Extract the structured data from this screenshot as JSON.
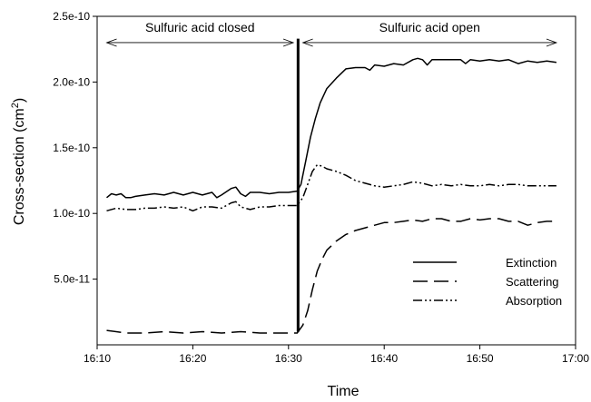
{
  "chart_data": {
    "type": "line",
    "xlabel": "Time",
    "ylabel_main": "Cross-section (cm",
    "ylabel_sup": "2",
    "ylabel_close": ")",
    "x_unit": "minutes",
    "xlim": [
      "16:10",
      "17:00"
    ],
    "ylim": [
      0,
      2.5e-10
    ],
    "x_ticks": [
      "16:10",
      "16:20",
      "16:30",
      "16:40",
      "16:50",
      "17:00"
    ],
    "y_ticks": [
      {
        "value": 5e-11,
        "label": "5.0e-11"
      },
      {
        "value": 1e-10,
        "label": "1.0e-10"
      },
      {
        "value": 1.5e-10,
        "label": "1.5e-10"
      },
      {
        "value": 2e-10,
        "label": "2.0e-10"
      },
      {
        "value": 2.5e-10,
        "label": "2.5e-10"
      }
    ],
    "grid": false,
    "legend_position": "bottom-right",
    "annotations": [
      {
        "text": "Sulfuric acid closed",
        "x_start": "16:11",
        "x_end": "16:30.5",
        "y": 2.3e-10
      },
      {
        "text": "Sulfuric acid open",
        "x_start": "16:31.5",
        "x_end": "16:58",
        "y": 2.3e-10
      }
    ],
    "event_line": {
      "x": "16:31",
      "y_min": 1e-11,
      "y_max": 2.33e-10
    },
    "series": [
      {
        "name": "Extinction",
        "dash": "solid",
        "points": [
          [
            "16:11",
            1.12e-10
          ],
          [
            "16:11.5",
            1.15e-10
          ],
          [
            "16:12",
            1.14e-10
          ],
          [
            "16:12.5",
            1.15e-10
          ],
          [
            "16:13",
            1.12e-10
          ],
          [
            "16:13.5",
            1.12e-10
          ],
          [
            "16:14",
            1.13e-10
          ],
          [
            "16:15",
            1.14e-10
          ],
          [
            "16:16",
            1.15e-10
          ],
          [
            "16:17",
            1.14e-10
          ],
          [
            "16:18",
            1.16e-10
          ],
          [
            "16:19",
            1.14e-10
          ],
          [
            "16:20",
            1.16e-10
          ],
          [
            "16:21",
            1.14e-10
          ],
          [
            "16:22",
            1.16e-10
          ],
          [
            "16:22.5",
            1.12e-10
          ],
          [
            "16:23",
            1.14e-10
          ],
          [
            "16:24",
            1.19e-10
          ],
          [
            "16:24.5",
            1.2e-10
          ],
          [
            "16:25",
            1.15e-10
          ],
          [
            "16:25.5",
            1.13e-10
          ],
          [
            "16:26",
            1.16e-10
          ],
          [
            "16:27",
            1.16e-10
          ],
          [
            "16:28",
            1.15e-10
          ],
          [
            "16:29",
            1.16e-10
          ],
          [
            "16:30",
            1.16e-10
          ],
          [
            "16:30.9",
            1.17e-10
          ],
          [
            "16:31.3",
            1.22e-10
          ],
          [
            "16:31.8",
            1.4e-10
          ],
          [
            "16:32.3",
            1.58e-10
          ],
          [
            "16:32.8",
            1.72e-10
          ],
          [
            "16:33.3",
            1.84e-10
          ],
          [
            "16:34",
            1.95e-10
          ],
          [
            "16:35",
            2.03e-10
          ],
          [
            "16:36",
            2.1e-10
          ],
          [
            "16:37",
            2.11e-10
          ],
          [
            "16:38",
            2.11e-10
          ],
          [
            "16:38.5",
            2.09e-10
          ],
          [
            "16:39",
            2.13e-10
          ],
          [
            "16:40",
            2.12e-10
          ],
          [
            "16:41",
            2.14e-10
          ],
          [
            "16:42",
            2.13e-10
          ],
          [
            "16:43",
            2.17e-10
          ],
          [
            "16:43.5",
            2.18e-10
          ],
          [
            "16:44",
            2.17e-10
          ],
          [
            "16:44.5",
            2.13e-10
          ],
          [
            "16:45",
            2.17e-10
          ],
          [
            "16:46",
            2.17e-10
          ],
          [
            "16:47",
            2.17e-10
          ],
          [
            "16:48",
            2.17e-10
          ],
          [
            "16:48.5",
            2.14e-10
          ],
          [
            "16:49",
            2.17e-10
          ],
          [
            "16:50",
            2.16e-10
          ],
          [
            "16:51",
            2.17e-10
          ],
          [
            "16:52",
            2.16e-10
          ],
          [
            "16:53",
            2.17e-10
          ],
          [
            "16:54",
            2.14e-10
          ],
          [
            "16:55",
            2.16e-10
          ],
          [
            "16:56",
            2.15e-10
          ],
          [
            "16:57",
            2.16e-10
          ],
          [
            "16:58",
            2.15e-10
          ]
        ]
      },
      {
        "name": "Scattering",
        "dash": "long-dash",
        "points": [
          [
            "16:11",
            1.1e-11
          ],
          [
            "16:13",
            9e-12
          ],
          [
            "16:15",
            9e-12
          ],
          [
            "16:17",
            1e-11
          ],
          [
            "16:19",
            9e-12
          ],
          [
            "16:21",
            1e-11
          ],
          [
            "16:23",
            9e-12
          ],
          [
            "16:25",
            1e-11
          ],
          [
            "16:27",
            9e-12
          ],
          [
            "16:29",
            9e-12
          ],
          [
            "16:30.9",
            9e-12
          ],
          [
            "16:31.5",
            1.5e-11
          ],
          [
            "16:32",
            2.6e-11
          ],
          [
            "16:32.5",
            4.2e-11
          ],
          [
            "16:33",
            5.6e-11
          ],
          [
            "16:33.5",
            6.5e-11
          ],
          [
            "16:34",
            7.2e-11
          ],
          [
            "16:35",
            7.9e-11
          ],
          [
            "16:36",
            8.4e-11
          ],
          [
            "16:37",
            8.7e-11
          ],
          [
            "16:38",
            8.9e-11
          ],
          [
            "16:39",
            9.1e-11
          ],
          [
            "16:40",
            9.3e-11
          ],
          [
            "16:41",
            9.3e-11
          ],
          [
            "16:42",
            9.4e-11
          ],
          [
            "16:43",
            9.5e-11
          ],
          [
            "16:44",
            9.4e-11
          ],
          [
            "16:45",
            9.6e-11
          ],
          [
            "16:46",
            9.6e-11
          ],
          [
            "16:47",
            9.4e-11
          ],
          [
            "16:48",
            9.4e-11
          ],
          [
            "16:49",
            9.6e-11
          ],
          [
            "16:50",
            9.5e-11
          ],
          [
            "16:51",
            9.6e-11
          ],
          [
            "16:52",
            9.6e-11
          ],
          [
            "16:53",
            9.4e-11
          ],
          [
            "16:54",
            9.4e-11
          ],
          [
            "16:55",
            9.1e-11
          ],
          [
            "16:56",
            9.3e-11
          ],
          [
            "16:57",
            9.4e-11
          ],
          [
            "16:58",
            9.4e-11
          ]
        ]
      },
      {
        "name": "Absorption",
        "dash": "dash-dot-dot",
        "points": [
          [
            "16:11",
            1.02e-10
          ],
          [
            "16:12",
            1.04e-10
          ],
          [
            "16:13",
            1.03e-10
          ],
          [
            "16:14",
            1.03e-10
          ],
          [
            "16:15",
            1.04e-10
          ],
          [
            "16:16",
            1.04e-10
          ],
          [
            "16:17",
            1.05e-10
          ],
          [
            "16:18",
            1.04e-10
          ],
          [
            "16:19",
            1.05e-10
          ],
          [
            "16:20",
            1.02e-10
          ],
          [
            "16:21",
            1.05e-10
          ],
          [
            "16:22",
            1.05e-10
          ],
          [
            "16:23",
            1.04e-10
          ],
          [
            "16:24",
            1.08e-10
          ],
          [
            "16:24.5",
            1.09e-10
          ],
          [
            "16:25",
            1.05e-10
          ],
          [
            "16:26",
            1.03e-10
          ],
          [
            "16:27",
            1.05e-10
          ],
          [
            "16:28",
            1.05e-10
          ],
          [
            "16:29",
            1.06e-10
          ],
          [
            "16:30",
            1.06e-10
          ],
          [
            "16:30.9",
            1.06e-10
          ],
          [
            "16:31.5",
            1.12e-10
          ],
          [
            "16:32",
            1.22e-10
          ],
          [
            "16:32.5",
            1.32e-10
          ],
          [
            "16:33",
            1.37e-10
          ],
          [
            "16:33.5",
            1.36e-10
          ],
          [
            "16:34",
            1.34e-10
          ],
          [
            "16:35",
            1.32e-10
          ],
          [
            "16:36",
            1.29e-10
          ],
          [
            "16:37",
            1.25e-10
          ],
          [
            "16:38",
            1.23e-10
          ],
          [
            "16:39",
            1.21e-10
          ],
          [
            "16:40",
            1.2e-10
          ],
          [
            "16:41",
            1.21e-10
          ],
          [
            "16:42",
            1.22e-10
          ],
          [
            "16:43",
            1.24e-10
          ],
          [
            "16:44",
            1.23e-10
          ],
          [
            "16:45",
            1.21e-10
          ],
          [
            "16:46",
            1.22e-10
          ],
          [
            "16:47",
            1.21e-10
          ],
          [
            "16:48",
            1.22e-10
          ],
          [
            "16:49",
            1.21e-10
          ],
          [
            "16:50",
            1.21e-10
          ],
          [
            "16:51",
            1.22e-10
          ],
          [
            "16:52",
            1.21e-10
          ],
          [
            "16:53",
            1.22e-10
          ],
          [
            "16:54",
            1.22e-10
          ],
          [
            "16:55",
            1.21e-10
          ],
          [
            "16:56",
            1.21e-10
          ],
          [
            "16:57",
            1.21e-10
          ],
          [
            "16:58",
            1.21e-10
          ]
        ]
      }
    ]
  }
}
